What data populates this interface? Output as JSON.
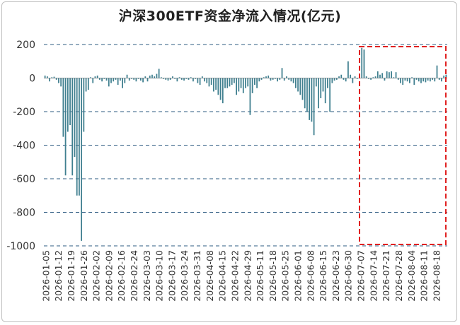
{
  "chart_data": {
    "type": "bar",
    "title": "沪深300ETF资金净流入情况(亿元)",
    "xlabel": "",
    "ylabel": "",
    "ylim": [
      -1000,
      200
    ],
    "yticks": [
      200,
      0,
      -200,
      -400,
      -600,
      -800,
      -1000
    ],
    "grid": "horizontal dashed",
    "bar_color": "#3f7f8f",
    "gridline_color": "#2e5b82",
    "highlight_box_color": "#e02020",
    "highlight_range": [
      "2026-07-09",
      "2026-08-24"
    ],
    "x_tick_labels": [
      "2026-01-05",
      "2026-01-12",
      "2026-01-19",
      "2026-01-26",
      "2026-02-02",
      "2026-02-09",
      "2026-02-16",
      "2026-02-24",
      "2026-03-03",
      "2026-03-10",
      "2026-03-17",
      "2026-03-24",
      "2026-03-31",
      "2026-04-08",
      "2026-04-15",
      "2026-04-22",
      "2026-04-29",
      "2026-05-11",
      "2026-05-18",
      "2026-05-25",
      "2026-06-01",
      "2026-06-08",
      "2026-06-15",
      "2026-06-23",
      "2026-06-30",
      "2026-07-07",
      "2026-07-14",
      "2026-07-21",
      "2026-07-28",
      "2026-08-04",
      "2026-08-11",
      "2026-08-18"
    ],
    "values": [
      15,
      10,
      -20,
      5,
      8,
      -10,
      -30,
      -50,
      -350,
      -580,
      -320,
      -280,
      -580,
      -470,
      -700,
      -700,
      -970,
      -320,
      -80,
      -70,
      5,
      -30,
      10,
      15,
      -10,
      -20,
      -5,
      -15,
      -50,
      -30,
      -20,
      -10,
      -40,
      -15,
      -60,
      -30,
      20,
      -15,
      -5,
      -10,
      -20,
      -5,
      -15,
      -25,
      10,
      -20,
      15,
      20,
      10,
      25,
      55,
      5,
      -5,
      -10,
      -15,
      -10,
      10,
      -5,
      -20,
      5,
      -10,
      -15,
      -5,
      -10,
      5,
      -20,
      -5,
      -30,
      -40,
      10,
      -20,
      -30,
      -50,
      -40,
      -80,
      -70,
      -100,
      -130,
      -150,
      -60,
      -60,
      -50,
      -40,
      -30,
      -100,
      -80,
      -60,
      -90,
      -60,
      -50,
      -220,
      -90,
      -40,
      -60,
      -20,
      -10,
      5,
      10,
      15,
      -15,
      -10,
      -5,
      -20,
      -10,
      60,
      -15,
      10,
      -10,
      -20,
      -30,
      -60,
      -80,
      -100,
      -130,
      -180,
      -200,
      -250,
      -260,
      -340,
      -50,
      -180,
      -120,
      -80,
      -150,
      -60,
      -200,
      -30,
      -15,
      -10,
      10,
      20,
      -10,
      -20,
      100,
      20,
      -30,
      10,
      -5,
      5,
      180,
      170,
      10,
      -5,
      -10,
      5,
      10,
      40,
      20,
      30,
      -15,
      40,
      35,
      40,
      5,
      35,
      -10,
      -30,
      -40,
      -15,
      -20,
      -30,
      5,
      -40,
      -10,
      -20,
      -30,
      -20,
      -25,
      -15,
      -20,
      -10,
      -20,
      75,
      -10,
      -20,
      15,
      20
    ]
  }
}
